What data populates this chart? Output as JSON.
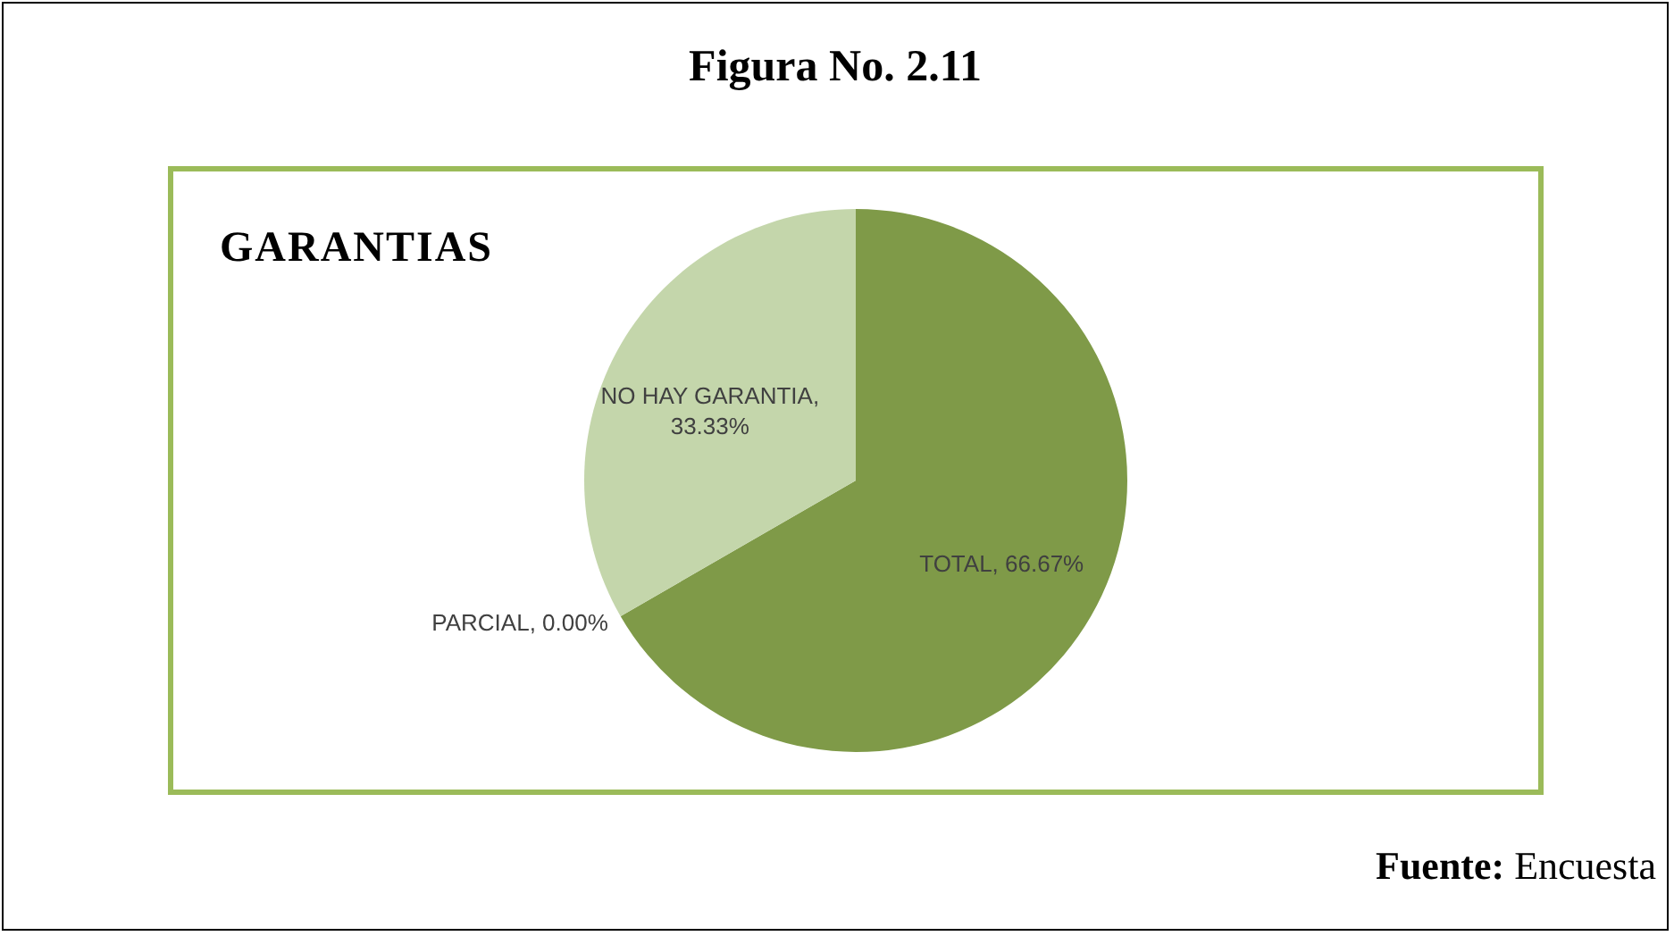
{
  "chart_data": {
    "type": "pie",
    "title": "Figura No. 2.11",
    "subtitle": "GARANTIAS",
    "categories": [
      "TOTAL",
      "PARCIAL",
      "NO HAY GARANTIA"
    ],
    "values": [
      66.67,
      0.0,
      33.33
    ],
    "colors": [
      "#7f9a48",
      "#9bbb59",
      "#c4d6ab"
    ],
    "value_labels": [
      ", 66.67%",
      ", 0.00%",
      ", 33.33%"
    ],
    "annotations": [
      "Fuente: Encuesta"
    ]
  }
}
